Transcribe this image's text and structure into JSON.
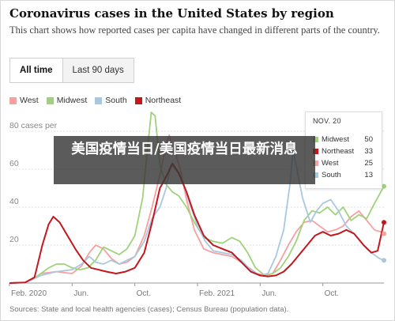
{
  "header": {
    "title": "Coronavirus cases in the United States by region",
    "subtitle": "This chart shows how reported cases per capita have changed in different parts of the country."
  },
  "tabs": [
    {
      "label": "All time",
      "active": true
    },
    {
      "label": "Last 90 days",
      "active": false
    }
  ],
  "legend": [
    {
      "name": "West",
      "color": "#f4a1a0"
    },
    {
      "name": "Midwest",
      "color": "#9fd27a"
    },
    {
      "name": "South",
      "color": "#a9c8e0"
    },
    {
      "name": "Northeast",
      "color": "#c5161d"
    }
  ],
  "tooltip": {
    "date": "NOV. 20",
    "rows": [
      {
        "name": "Midwest",
        "value": "50",
        "color": "#9fd27a"
      },
      {
        "name": "Northeast",
        "value": "33",
        "color": "#c5161d"
      },
      {
        "name": "West",
        "value": "25",
        "color": "#f4a1a0"
      },
      {
        "name": "South",
        "value": "13",
        "color": "#a9c8e0"
      }
    ]
  },
  "overlay": {
    "text": "美国疫情当日/美国疫情当日最新消息"
  },
  "source": "Sources: State and local health agencies (cases); Census Bureau (population data).",
  "chart_data": {
    "type": "line",
    "ylim": [
      0,
      90
    ],
    "y_tick_values": [
      20,
      40,
      60,
      80
    ],
    "y_tick_labels": [
      "20",
      "40",
      "60",
      "80 cases per"
    ],
    "x_tick_labels": [
      "Feb. 2020",
      "Jun.",
      "Oct.",
      "Feb. 2021",
      "Jun.",
      "Oct."
    ],
    "x_tick_months": [
      0,
      4,
      8,
      12,
      16,
      20
    ],
    "x_range_months": [
      0,
      23.9
    ],
    "x_unit": "months since Feb. 2020",
    "grid": true,
    "legend_position": "top-left",
    "series": [
      {
        "name": "West",
        "color": "#f4a1a0",
        "points": [
          [
            0,
            0
          ],
          [
            1,
            0.3
          ],
          [
            1.5,
            2
          ],
          [
            2,
            5
          ],
          [
            3,
            6
          ],
          [
            4,
            5
          ],
          [
            4.6,
            9
          ],
          [
            5.1,
            16
          ],
          [
            5.5,
            20
          ],
          [
            6,
            18
          ],
          [
            6.5,
            13
          ],
          [
            7,
            10
          ],
          [
            7.5,
            11
          ],
          [
            8,
            14
          ],
          [
            8.6,
            25
          ],
          [
            9.1,
            40
          ],
          [
            9.6,
            57
          ],
          [
            10,
            73
          ],
          [
            10.2,
            78
          ],
          [
            10.4,
            70
          ],
          [
            10.6,
            68
          ],
          [
            10.9,
            60
          ],
          [
            11.3,
            44
          ],
          [
            11.8,
            28
          ],
          [
            12.4,
            18
          ],
          [
            13,
            16
          ],
          [
            13.6,
            15
          ],
          [
            14.2,
            14
          ],
          [
            14.8,
            11
          ],
          [
            15.3,
            8
          ],
          [
            15.8,
            5
          ],
          [
            16.3,
            4
          ],
          [
            16.8,
            5
          ],
          [
            17.3,
            12
          ],
          [
            17.8,
            20
          ],
          [
            18.3,
            27
          ],
          [
            18.8,
            32
          ],
          [
            19.3,
            33
          ],
          [
            19.8,
            30
          ],
          [
            20.3,
            27
          ],
          [
            20.8,
            28
          ],
          [
            21.3,
            30
          ],
          [
            21.8,
            35
          ],
          [
            22.3,
            38
          ],
          [
            22.8,
            33
          ],
          [
            23.3,
            28
          ],
          [
            23.7,
            27
          ],
          [
            23.9,
            26
          ]
        ]
      },
      {
        "name": "Midwest",
        "color": "#9fd27a",
        "points": [
          [
            0,
            0
          ],
          [
            1,
            0.3
          ],
          [
            1.5,
            2
          ],
          [
            2,
            5
          ],
          [
            2.5,
            8
          ],
          [
            3,
            10
          ],
          [
            3.5,
            10
          ],
          [
            4,
            8
          ],
          [
            4.5,
            7
          ],
          [
            5,
            8
          ],
          [
            5.5,
            12
          ],
          [
            6,
            19
          ],
          [
            6.5,
            17
          ],
          [
            7,
            15
          ],
          [
            7.5,
            18
          ],
          [
            8,
            25
          ],
          [
            8.5,
            45
          ],
          [
            8.8,
            70
          ],
          [
            9.05,
            90
          ],
          [
            9.3,
            88
          ],
          [
            9.6,
            62
          ],
          [
            10,
            52
          ],
          [
            10.4,
            48
          ],
          [
            10.8,
            46
          ],
          [
            11.3,
            40
          ],
          [
            11.8,
            32
          ],
          [
            12.4,
            24
          ],
          [
            13,
            22
          ],
          [
            13.6,
            21
          ],
          [
            14.2,
            24
          ],
          [
            14.7,
            22
          ],
          [
            15.2,
            16
          ],
          [
            15.7,
            8
          ],
          [
            16.3,
            4
          ],
          [
            16.8,
            5
          ],
          [
            17.3,
            8
          ],
          [
            17.8,
            14
          ],
          [
            18.3,
            22
          ],
          [
            18.8,
            33
          ],
          [
            19.3,
            38
          ],
          [
            19.8,
            37
          ],
          [
            20.3,
            40
          ],
          [
            20.8,
            36
          ],
          [
            21.3,
            40
          ],
          [
            21.8,
            33
          ],
          [
            22.3,
            36
          ],
          [
            22.8,
            34
          ],
          [
            23.3,
            42
          ],
          [
            23.9,
            51
          ]
        ]
      },
      {
        "name": "South",
        "color": "#a9c8e0",
        "points": [
          [
            0,
            0
          ],
          [
            1,
            0.3
          ],
          [
            1.5,
            2
          ],
          [
            2,
            4
          ],
          [
            3,
            6
          ],
          [
            4,
            7
          ],
          [
            4.6,
            10
          ],
          [
            5.1,
            14
          ],
          [
            5.5,
            11
          ],
          [
            6,
            10
          ],
          [
            6.5,
            12
          ],
          [
            7,
            10
          ],
          [
            7.5,
            12
          ],
          [
            8,
            14
          ],
          [
            8.6,
            22
          ],
          [
            9.1,
            34
          ],
          [
            9.6,
            40
          ],
          [
            10,
            50
          ],
          [
            10.3,
            62
          ],
          [
            10.6,
            60
          ],
          [
            11,
            55
          ],
          [
            11.5,
            42
          ],
          [
            12,
            30
          ],
          [
            12.5,
            22
          ],
          [
            13,
            17
          ],
          [
            13.6,
            16
          ],
          [
            14.2,
            15
          ],
          [
            14.8,
            12
          ],
          [
            15.4,
            7
          ],
          [
            16,
            4
          ],
          [
            16.5,
            5
          ],
          [
            17,
            14
          ],
          [
            17.5,
            28
          ],
          [
            17.9,
            52
          ],
          [
            18.1,
            70
          ],
          [
            18.3,
            62
          ],
          [
            18.7,
            45
          ],
          [
            19.2,
            32
          ],
          [
            19.6,
            38
          ],
          [
            20,
            42
          ],
          [
            20.5,
            44
          ],
          [
            21,
            38
          ],
          [
            21.5,
            30
          ],
          [
            22,
            26
          ],
          [
            22.6,
            20
          ],
          [
            23.1,
            16
          ],
          [
            23.6,
            13
          ],
          [
            23.9,
            12
          ]
        ]
      },
      {
        "name": "Northeast",
        "color": "#c5161d",
        "points": [
          [
            0,
            0
          ],
          [
            1,
            0.3
          ],
          [
            1.6,
            3
          ],
          [
            2.1,
            20
          ],
          [
            2.5,
            31
          ],
          [
            2.8,
            35
          ],
          [
            3.2,
            32
          ],
          [
            3.7,
            25
          ],
          [
            4.2,
            18
          ],
          [
            4.7,
            12
          ],
          [
            5.2,
            8
          ],
          [
            5.7,
            7
          ],
          [
            6.2,
            6
          ],
          [
            6.8,
            5
          ],
          [
            7.4,
            6
          ],
          [
            8,
            8
          ],
          [
            8.6,
            16
          ],
          [
            9.1,
            32
          ],
          [
            9.6,
            50
          ],
          [
            10,
            56
          ],
          [
            10.4,
            63
          ],
          [
            10.8,
            58
          ],
          [
            11.3,
            48
          ],
          [
            11.8,
            36
          ],
          [
            12.4,
            25
          ],
          [
            13,
            20
          ],
          [
            13.6,
            18
          ],
          [
            14.2,
            16
          ],
          [
            14.8,
            11
          ],
          [
            15.4,
            6
          ],
          [
            16,
            4
          ],
          [
            16.5,
            3.5
          ],
          [
            17,
            4
          ],
          [
            17.5,
            6
          ],
          [
            18,
            10
          ],
          [
            18.5,
            15
          ],
          [
            19,
            20
          ],
          [
            19.5,
            25
          ],
          [
            20,
            27
          ],
          [
            20.5,
            25
          ],
          [
            21,
            26
          ],
          [
            21.5,
            28
          ],
          [
            22,
            26
          ],
          [
            22.6,
            20
          ],
          [
            23.1,
            16
          ],
          [
            23.5,
            17
          ],
          [
            23.9,
            32
          ]
        ]
      }
    ]
  }
}
